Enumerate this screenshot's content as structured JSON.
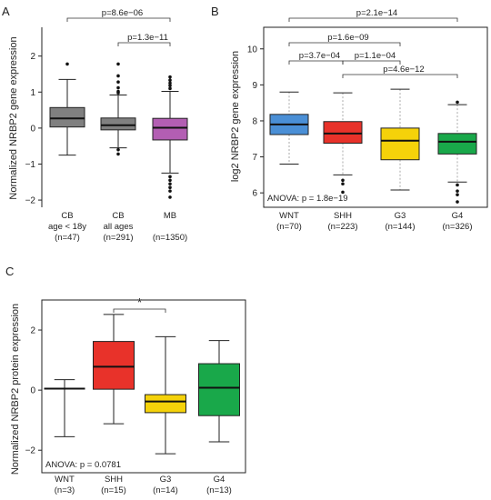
{
  "chart_data": [
    {
      "panel": "A",
      "type": "box",
      "ylabel": "Normalized NRBP2 gene expression",
      "ylim": [
        -2.2,
        2.8
      ],
      "yticks": [
        "2",
        "1",
        "0",
        "−1",
        "−2"
      ],
      "categories": [
        {
          "lines": [
            "CB",
            "age < 18y",
            "(n=47)"
          ]
        },
        {
          "lines": [
            "CB",
            "all ages",
            "(n=291)"
          ]
        },
        {
          "lines": [
            "MB",
            "",
            "(n=1350)"
          ]
        }
      ],
      "boxes": [
        {
          "color": "#808080",
          "min": -0.75,
          "q1": 0.03,
          "median": 0.27,
          "q3": 0.57,
          "max": 1.35,
          "outliers": [
            1.78
          ]
        },
        {
          "color": "#808080",
          "min": -0.55,
          "q1": -0.05,
          "median": 0.08,
          "q3": 0.28,
          "max": 0.92,
          "outliers": [
            1.78,
            1.45,
            1.28,
            1.12,
            1.02,
            0.98,
            -0.6,
            -0.72
          ]
        },
        {
          "color": "#b35eb3",
          "min": -1.25,
          "q1": -0.33,
          "median": 0.01,
          "q3": 0.27,
          "max": 1.02,
          "outliers": [
            1.42,
            1.33,
            1.25,
            1.18,
            1.1,
            -1.35,
            -1.45,
            -1.55,
            -1.65,
            -1.75,
            -1.92
          ]
        }
      ],
      "brackets": [
        {
          "from": 0,
          "to": 2,
          "label": "p=8.6e−06"
        },
        {
          "from": 1,
          "to": 2,
          "label": "p=1.3e−11"
        }
      ]
    },
    {
      "panel": "B",
      "type": "box",
      "ylabel": "log2 NRBP2 gene expression",
      "ylim": [
        5.6,
        10.6
      ],
      "yticks": [
        "10",
        "9",
        "8",
        "7",
        "6"
      ],
      "categories": [
        {
          "lines": [
            "WNT",
            "(n=70)"
          ]
        },
        {
          "lines": [
            "SHH",
            "(n=223)"
          ]
        },
        {
          "lines": [
            "G3",
            "(n=144)"
          ]
        },
        {
          "lines": [
            "G4",
            "(n=326)"
          ]
        }
      ],
      "boxes": [
        {
          "color": "#4a8fd6",
          "min": 6.8,
          "q1": 7.62,
          "median": 7.9,
          "q3": 8.18,
          "max": 8.8,
          "outliers": []
        },
        {
          "color": "#e8322a",
          "min": 6.5,
          "q1": 7.38,
          "median": 7.65,
          "q3": 7.98,
          "max": 8.78,
          "outliers": [
            6.35,
            6.25,
            6.02
          ]
        },
        {
          "color": "#f5d20a",
          "min": 6.08,
          "q1": 6.92,
          "median": 7.45,
          "q3": 7.8,
          "max": 8.88,
          "outliers": []
        },
        {
          "color": "#19a84a",
          "min": 6.3,
          "q1": 7.08,
          "median": 7.42,
          "q3": 7.65,
          "max": 8.45,
          "outliers": [
            8.52,
            6.22,
            6.05,
            5.95,
            5.75
          ]
        }
      ],
      "brackets": [
        {
          "from": 0,
          "to": 3,
          "label": "p=2.1e−14"
        },
        {
          "from": 0,
          "to": 2,
          "label": "p=1.6e−09"
        },
        {
          "from": 0,
          "to": 1,
          "label": "p=3.7e−04"
        },
        {
          "from": 1,
          "to": 2,
          "label": "p=1.1e−04"
        },
        {
          "from": 1,
          "to": 3,
          "label": "p=4.6e−12"
        }
      ],
      "annotation": "ANOVA: p = 1.8e−19"
    },
    {
      "panel": "C",
      "type": "box",
      "ylabel": "Normalized NRBP2 protein expression",
      "ylim": [
        -2.75,
        3.0
      ],
      "yticks": [
        "2",
        "0",
        "−2"
      ],
      "categories": [
        {
          "lines": [
            "WNT",
            "(n=3)"
          ]
        },
        {
          "lines": [
            "SHH",
            "(n=15)"
          ]
        },
        {
          "lines": [
            "G3",
            "(n=14)"
          ]
        },
        {
          "lines": [
            "G4",
            "(n=13)"
          ]
        }
      ],
      "boxes": [
        {
          "color": "#ffffff",
          "min": -1.55,
          "q1": 0.05,
          "median": 0.05,
          "q3": 0.05,
          "max": 0.35,
          "outliers": []
        },
        {
          "color": "#e8322a",
          "min": -1.12,
          "q1": 0.03,
          "median": 0.78,
          "q3": 1.62,
          "max": 2.52,
          "outliers": []
        },
        {
          "color": "#f5d20a",
          "min": -2.12,
          "q1": -0.75,
          "median": -0.38,
          "q3": -0.15,
          "max": 1.78,
          "outliers": []
        },
        {
          "color": "#19a84a",
          "min": -1.72,
          "q1": -0.85,
          "median": 0.08,
          "q3": 0.88,
          "max": 1.65,
          "outliers": []
        }
      ],
      "brackets": [
        {
          "from": 1,
          "to": 2,
          "label": "*"
        }
      ],
      "annotation": "ANOVA: p = 0.0781"
    }
  ]
}
